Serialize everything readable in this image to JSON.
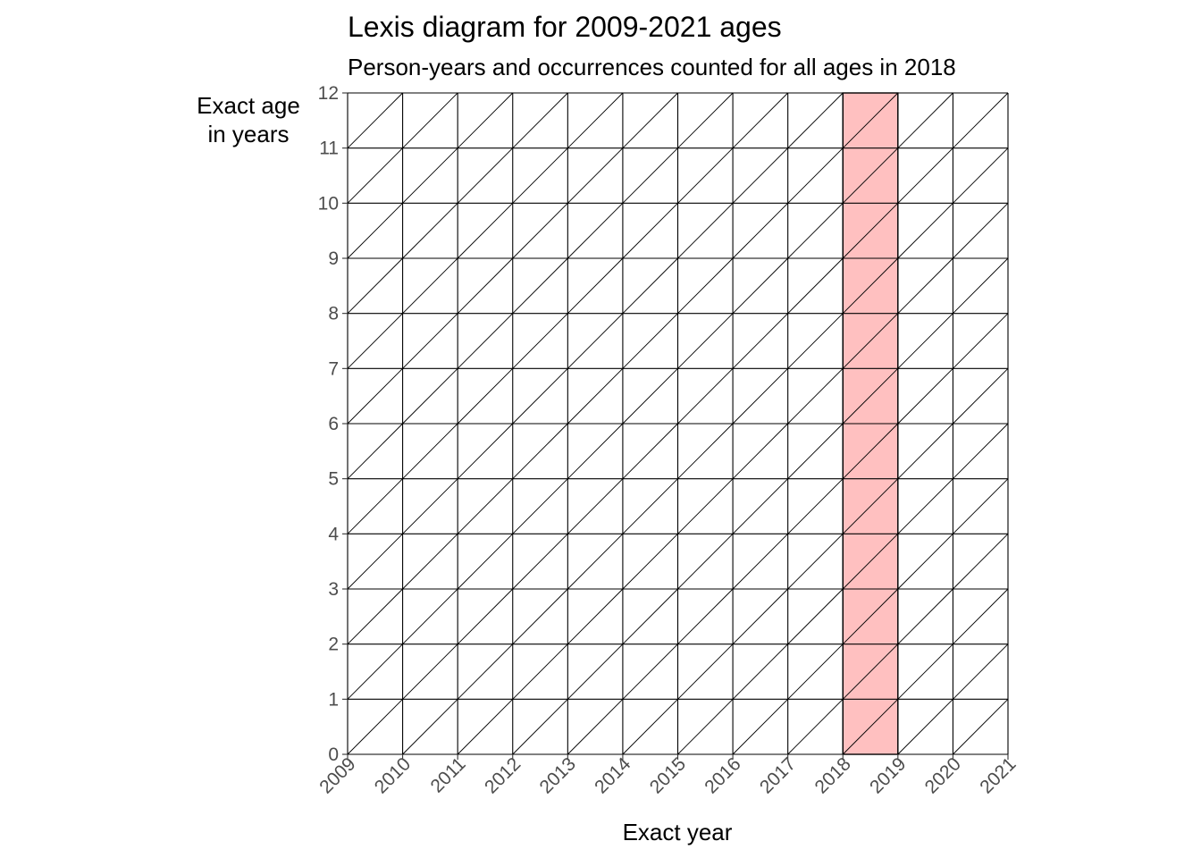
{
  "chart_data": {
    "type": "lexis-diagram",
    "title": "Lexis diagram for 2009-2021 ages",
    "subtitle": "Person-years and occurrences counted for all ages in 2018",
    "xlabel": "Exact year",
    "ylabel_lines": [
      "Exact age",
      "in years"
    ],
    "xlim": [
      2009,
      2021
    ],
    "ylim": [
      0,
      12
    ],
    "x_ticks": [
      2009,
      2010,
      2011,
      2012,
      2013,
      2014,
      2015,
      2016,
      2017,
      2018,
      2019,
      2020,
      2021
    ],
    "y_ticks": [
      0,
      1,
      2,
      3,
      4,
      5,
      6,
      7,
      8,
      9,
      10,
      11,
      12
    ],
    "grid": true,
    "diagonals": true,
    "highlight": {
      "x_start": 2018,
      "x_end": 2019,
      "y_start": 0,
      "y_end": 12,
      "color": "#ffc0c0",
      "border_color": "#000000"
    },
    "line_color": "#000000",
    "tick_label_color": "#4d4d4d"
  }
}
